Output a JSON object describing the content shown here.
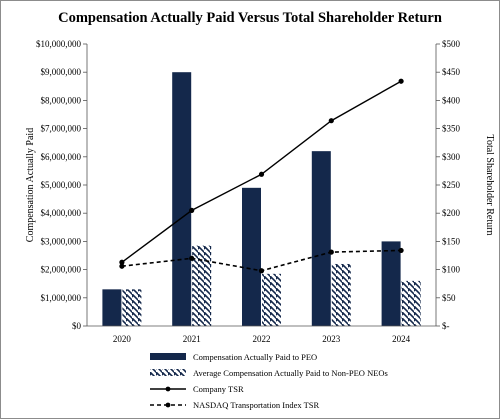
{
  "chart_data": {
    "type": "bar",
    "title": "Compensation Actually Paid Versus Total Shareholder Return",
    "categories": [
      "2020",
      "2021",
      "2022",
      "2023",
      "2024"
    ],
    "ylabel": "Compensation Actually Paid",
    "y2label": "Total Shareholder Return",
    "ylim": [
      0,
      10000000
    ],
    "y2lim": [
      0,
      500
    ],
    "yticks": [
      "$0",
      "$1,000,000",
      "$2,000,000",
      "$3,000,000",
      "$4,000,000",
      "$5,000,000",
      "$6,000,000",
      "$7,000,000",
      "$8,000,000",
      "$9,000,000",
      "$10,000,000"
    ],
    "y2ticks": [
      "$-",
      "$50",
      "$100",
      "$150",
      "$200",
      "$250",
      "$300",
      "$350",
      "$400",
      "$450",
      "$500"
    ],
    "grid": false,
    "legend_position": "bottom",
    "series": [
      {
        "name": "Compensation Actually Paid to PEO",
        "kind": "bar",
        "axis": "left",
        "color": "#14284b",
        "values": [
          1300000,
          9000000,
          4900000,
          6200000,
          3000000
        ]
      },
      {
        "name": "Average Compensation Actually Paid to Non-PEO NEOs",
        "kind": "bar-hatched",
        "axis": "left",
        "color": "#14284b",
        "values": [
          1300000,
          2850000,
          1850000,
          2200000,
          1600000
        ]
      },
      {
        "name": "Company TSR",
        "kind": "line-solid",
        "axis": "right",
        "color": "#000000",
        "values": [
          113,
          205,
          269,
          364,
          434
        ]
      },
      {
        "name": "NASDAQ Transportation Index TSR",
        "kind": "line-dashed",
        "axis": "right",
        "color": "#000000",
        "values": [
          106,
          120,
          98,
          131,
          134
        ]
      }
    ]
  }
}
